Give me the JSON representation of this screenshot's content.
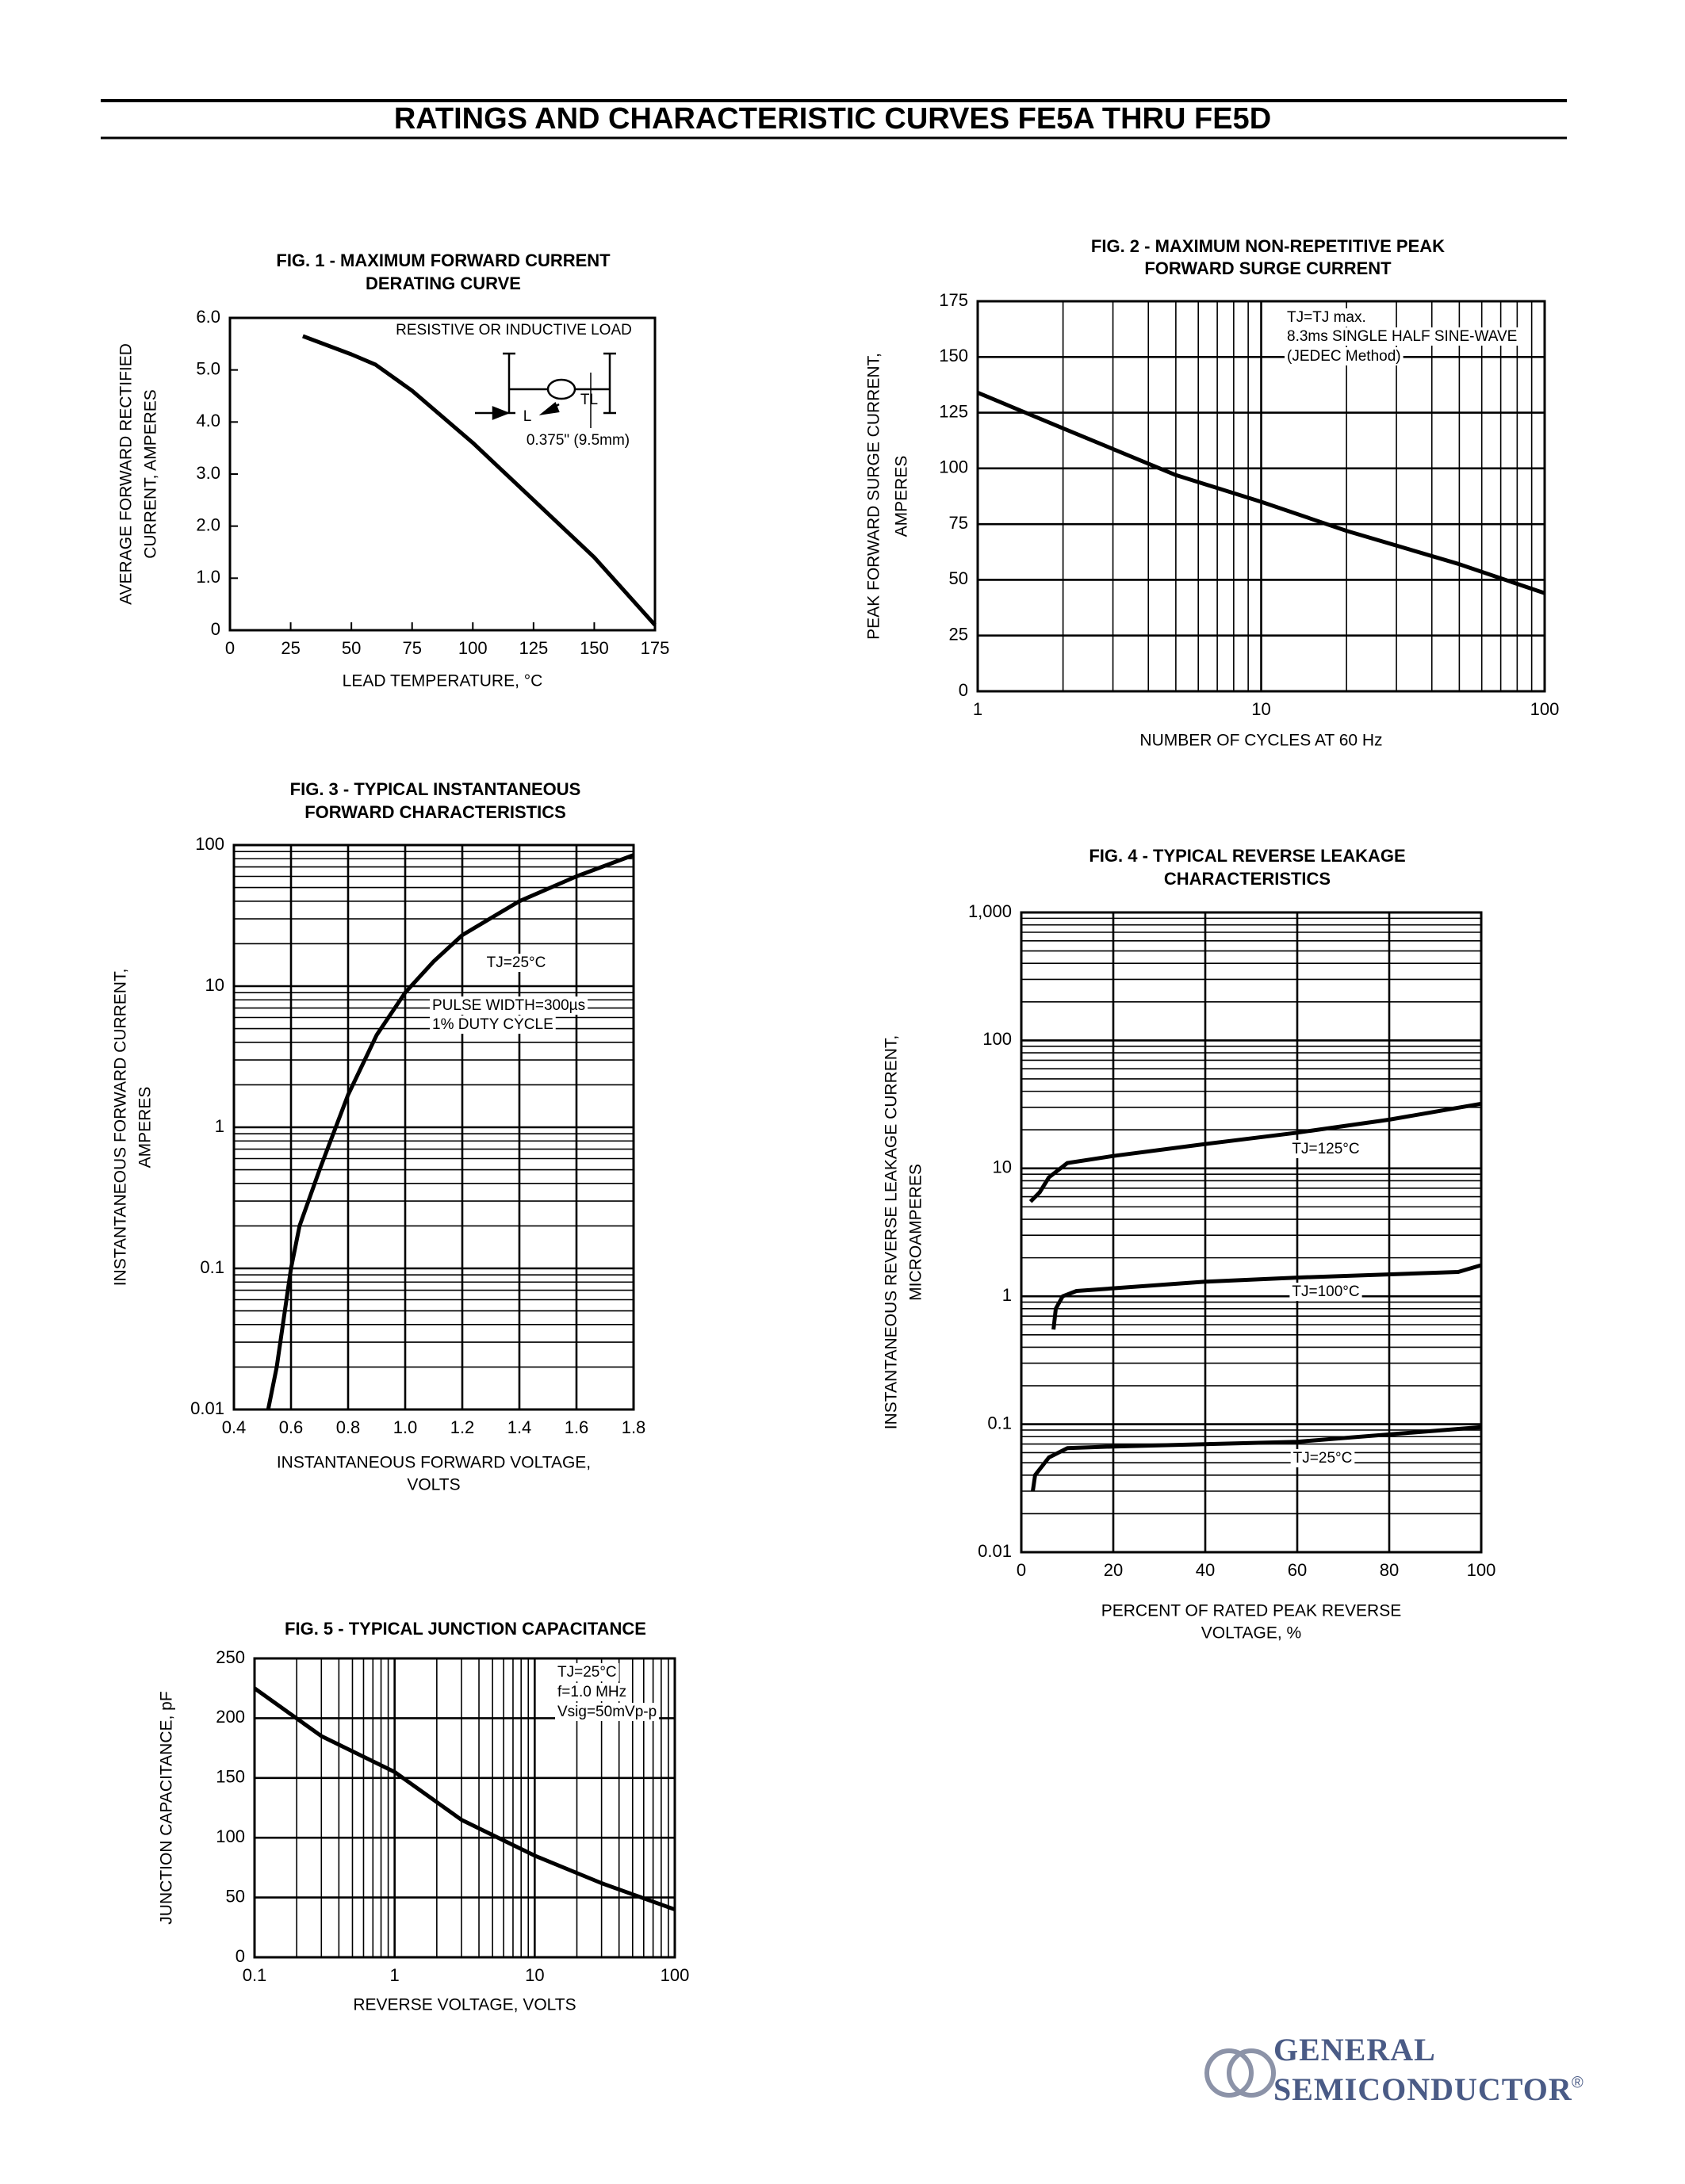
{
  "header": {
    "title": "RATINGS AND CHARACTERISTIC CURVES FE5A THRU FE5D"
  },
  "footer": {
    "brand": [
      "GENERAL",
      "SEMICONDUCTOR"
    ],
    "mark": "®"
  },
  "chart_data": [
    {
      "type": "line",
      "title": [
        "FIG. 1 - MAXIMUM FORWARD CURRENT",
        "DERATING CURVE"
      ],
      "x_label": [
        "LEAD TEMPERATURE, °C"
      ],
      "y_label": [
        "AVERAGE FORWARD RECTIFIED",
        "CURRENT, AMPERES"
      ],
      "xlim": [
        0,
        175
      ],
      "xticks": [
        0,
        25,
        50,
        75,
        100,
        125,
        150,
        175
      ],
      "ylim": [
        0,
        6
      ],
      "yticks": [
        0,
        {
          "value": 1,
          "label": "1.0"
        },
        {
          "value": 2,
          "label": "2.0"
        },
        {
          "value": 3,
          "label": "3.0"
        },
        {
          "value": 4,
          "label": "4.0"
        },
        {
          "value": 5,
          "label": "5.0"
        },
        {
          "value": 6,
          "label": "6.0"
        }
      ],
      "grid": false,
      "annotations": [
        "RESISTIVE OR INDUCTIVE LOAD",
        "L",
        "TL",
        "0.375\" (9.5mm)"
      ],
      "series": [
        {
          "color": "#000000",
          "x": [
            30,
            50,
            60,
            75,
            100,
            125,
            150,
            175
          ],
          "values": [
            5.65,
            5.3,
            5.1,
            4.6,
            3.6,
            2.5,
            1.4,
            0.1
          ]
        }
      ]
    },
    {
      "type": "line",
      "title": [
        "FIG. 2 - MAXIMUM NON-REPETITIVE PEAK",
        "FORWARD SURGE CURRENT"
      ],
      "x_label": [
        "NUMBER OF CYCLES AT 60 Hz"
      ],
      "y_label": [
        "PEAK FORWARD SURGE CURRENT,",
        "AMPERES"
      ],
      "xscale": "log",
      "xlim": [
        1,
        100
      ],
      "xticks": [
        1,
        10,
        100
      ],
      "ylim": [
        0,
        175
      ],
      "yticks": [
        0,
        25,
        50,
        75,
        100,
        125,
        150,
        175
      ],
      "grid": true,
      "minor_grid": true,
      "annotations": [
        "TJ=TJ max.",
        "8.3ms SINGLE HALF SINE-WAVE",
        "(JEDEC Method)"
      ],
      "series": [
        {
          "color": "#000000",
          "x": [
            1,
            2,
            5,
            10,
            20,
            50,
            100
          ],
          "values": [
            134,
            118,
            97,
            85,
            72,
            57,
            44
          ]
        }
      ]
    },
    {
      "type": "line",
      "title": [
        "FIG. 3 - TYPICAL INSTANTANEOUS",
        "FORWARD CHARACTERISTICS"
      ],
      "x_label": [
        "INSTANTANEOUS FORWARD VOLTAGE,",
        "VOLTS"
      ],
      "y_label": [
        "INSTANTANEOUS FORWARD CURRENT,",
        "AMPERES"
      ],
      "xlim": [
        0.4,
        1.8
      ],
      "xticks": [
        0.4,
        0.6,
        0.8,
        {
          "value": 1,
          "label": "1.0"
        },
        1.2,
        1.4,
        1.6,
        1.8
      ],
      "yscale": "log",
      "ylim": [
        0.01,
        100
      ],
      "yticks": [
        0.01,
        0.1,
        1,
        10,
        100
      ],
      "grid": true,
      "minor_grid": true,
      "annotations": [
        "TJ=25°C",
        "PULSE WIDTH=300µs",
        "1% DUTY CYCLE"
      ],
      "series": [
        {
          "color": "#000000",
          "x": [
            0.52,
            0.55,
            0.6,
            0.63,
            0.7,
            0.8,
            0.9,
            1.0,
            1.1,
            1.2,
            1.4,
            1.6,
            1.8
          ],
          "values": [
            0.01,
            0.02,
            0.1,
            0.2,
            0.5,
            1.7,
            4.5,
            9,
            15,
            23,
            40,
            60,
            85
          ]
        }
      ]
    },
    {
      "type": "line",
      "title": [
        "FIG. 4 - TYPICAL REVERSE LEAKAGE",
        "CHARACTERISTICS"
      ],
      "x_label": [
        "PERCENT OF RATED PEAK REVERSE",
        "VOLTAGE, %"
      ],
      "y_label": [
        "INSTANTANEOUS REVERSE LEAKAGE CURRENT,",
        "MICROAMPERES"
      ],
      "xlim": [
        0,
        100
      ],
      "xticks": [
        0,
        20,
        40,
        60,
        80,
        100
      ],
      "yscale": "log",
      "ylim": [
        0.01,
        1000
      ],
      "yticks": [
        0.01,
        0.1,
        1,
        10,
        100,
        {
          "value": 1000,
          "label": "1,000"
        }
      ],
      "grid": true,
      "minor_grid": true,
      "series": [
        {
          "name": "TJ=125°C",
          "color": "#000000",
          "x": [
            2,
            4,
            6,
            10,
            20,
            40,
            60,
            80,
            100
          ],
          "values": [
            5.5,
            6.5,
            8.5,
            11,
            12.5,
            15.5,
            19,
            24,
            32
          ]
        },
        {
          "name": "TJ=100°C",
          "color": "#000000",
          "x": [
            7,
            7.5,
            9,
            12,
            40,
            60,
            95,
            100
          ],
          "values": [
            0.55,
            0.8,
            1,
            1.1,
            1.3,
            1.4,
            1.55,
            1.75
          ]
        },
        {
          "name": "TJ=25°C",
          "color": "#000000",
          "x": [
            2.5,
            3,
            6,
            10,
            20,
            60,
            100
          ],
          "values": [
            0.03,
            0.04,
            0.055,
            0.065,
            0.067,
            0.073,
            0.095
          ]
        }
      ]
    },
    {
      "type": "line",
      "title": [
        "FIG. 5 - TYPICAL JUNCTION CAPACITANCE"
      ],
      "x_label": [
        "REVERSE VOLTAGE, VOLTS"
      ],
      "y_label": [
        "JUNCTION CAPACITANCE, pF"
      ],
      "xscale": "log",
      "xlim": [
        0.1,
        100
      ],
      "xticks": [
        0.1,
        1,
        10,
        100
      ],
      "ylim": [
        0,
        250
      ],
      "yticks": [
        0,
        50,
        100,
        150,
        200,
        250
      ],
      "grid": true,
      "minor_grid": true,
      "annotations": [
        "TJ=25°C",
        "f=1.0 MHz",
        "Vsig=50mVp-p"
      ],
      "series": [
        {
          "color": "#000000",
          "x": [
            0.1,
            0.3,
            1,
            3,
            10,
            30,
            100
          ],
          "values": [
            225,
            185,
            155,
            115,
            85,
            62,
            40
          ]
        }
      ]
    }
  ]
}
